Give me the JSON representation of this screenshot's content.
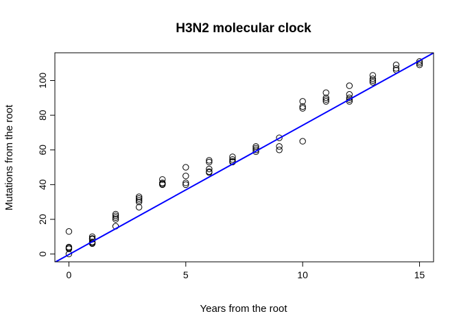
{
  "chart_data": {
    "type": "scatter",
    "title": "H3N2 molecular clock",
    "xlabel": "Years from the root",
    "ylabel": "Mutations from the root",
    "xlim": [
      -0.6,
      15.6
    ],
    "ylim": [
      -4.5,
      116
    ],
    "xticks": [
      0,
      5,
      10,
      15
    ],
    "yticks": [
      0,
      20,
      40,
      60,
      80,
      100
    ],
    "grid": false,
    "series": [
      {
        "marker": "open-circle",
        "color": "#000000",
        "x": [
          0,
          0,
          0,
          0,
          0,
          1,
          1,
          1,
          1,
          1,
          1,
          2,
          2,
          2,
          2,
          2,
          3,
          3,
          3,
          3,
          3,
          4,
          4,
          4,
          4,
          5,
          5,
          5,
          5,
          6,
          6,
          6,
          6,
          6,
          7,
          7,
          7,
          7,
          8,
          8,
          8,
          8,
          9,
          9,
          9,
          10,
          10,
          10,
          10,
          11,
          11,
          11,
          11,
          12,
          12,
          12,
          12,
          12,
          13,
          13,
          13,
          13,
          14,
          14,
          14,
          15,
          15,
          15
        ],
        "y": [
          13,
          4,
          3.5,
          3,
          0,
          10,
          9,
          8.5,
          7,
          6.5,
          6,
          23,
          22,
          21,
          20,
          16,
          33,
          32,
          31,
          30,
          27,
          43,
          41,
          40.5,
          40,
          50,
          45,
          41,
          40,
          54,
          53,
          49,
          47.5,
          47,
          56,
          54.5,
          53.5,
          53,
          62,
          61,
          60,
          59,
          67,
          62,
          60,
          88,
          85,
          84,
          65,
          93,
          90,
          89,
          88,
          97,
          92,
          90,
          89,
          88,
          103,
          101,
          100,
          99,
          109,
          107,
          106,
          111,
          110,
          109
        ]
      }
    ],
    "fit_line": {
      "color": "#0000ff",
      "intercept": -0.3,
      "slope": 7.45
    }
  }
}
